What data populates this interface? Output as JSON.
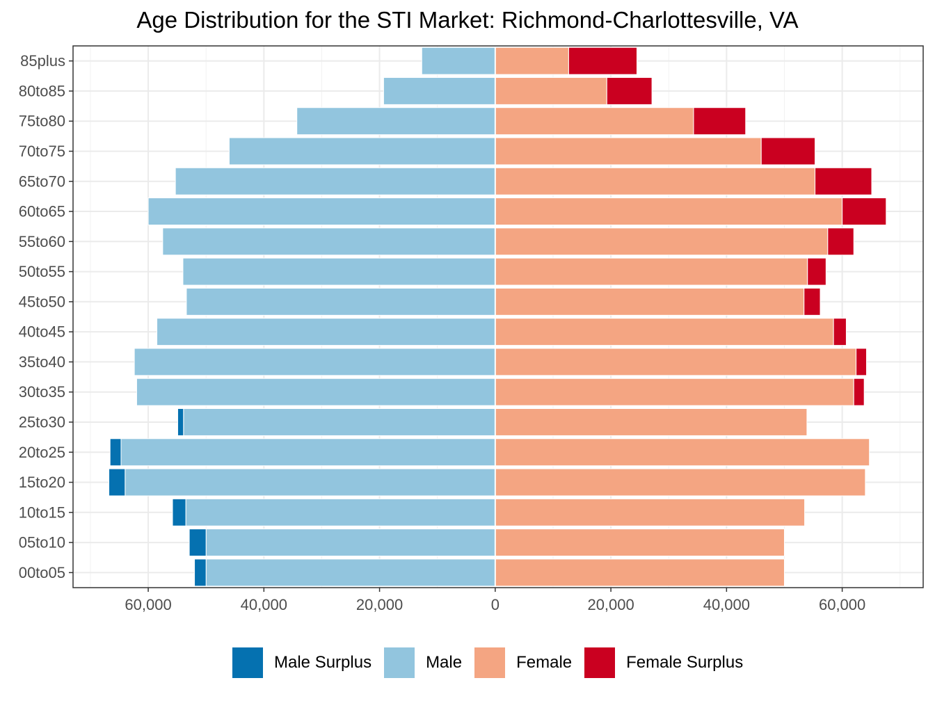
{
  "chart_data": {
    "type": "bar",
    "orientation": "horizontal",
    "title": "Age Distribution for the STI Market: Richmond-Charlottesville, VA",
    "xlabel": "",
    "ylabel": "",
    "categories": [
      "00to05",
      "05to10",
      "10to15",
      "15to20",
      "20to25",
      "25to30",
      "30to35",
      "35to40",
      "40to45",
      "45to50",
      "50to55",
      "55to60",
      "60to65",
      "65to70",
      "70to75",
      "75to80",
      "80to85",
      "85plus"
    ],
    "x_tick_values": [
      -60000,
      -40000,
      -20000,
      0,
      20000,
      40000,
      60000
    ],
    "x_tick_labels": [
      "60,000",
      "40,000",
      "20,000",
      "0",
      "20,000",
      "40,000",
      "60,000"
    ],
    "xlim": [
      -73000,
      74000
    ],
    "grid": true,
    "legend_position": "bottom",
    "series": [
      {
        "name": "Male Surplus",
        "color": "#0571b0",
        "side": "left",
        "values": [
          2000,
          2900,
          2300,
          2800,
          1900,
          1000,
          0,
          0,
          0,
          0,
          0,
          0,
          0,
          0,
          0,
          0,
          0,
          0
        ]
      },
      {
        "name": "Male",
        "color": "#92c5de",
        "side": "left",
        "values": [
          50000,
          50000,
          53500,
          64000,
          64700,
          53900,
          62000,
          62400,
          58500,
          53400,
          54000,
          57500,
          60000,
          55300,
          46000,
          34300,
          19300,
          12700
        ]
      },
      {
        "name": "Female",
        "color": "#f4a582",
        "side": "right",
        "values": [
          50000,
          50000,
          53500,
          64000,
          64700,
          53900,
          62000,
          62400,
          58500,
          53400,
          54000,
          57500,
          60000,
          55300,
          46000,
          34300,
          19300,
          12700
        ]
      },
      {
        "name": "Female Surplus",
        "color": "#ca0020",
        "side": "right",
        "values": [
          0,
          0,
          0,
          0,
          0,
          0,
          1800,
          1800,
          2200,
          2800,
          3200,
          4500,
          7600,
          9800,
          9300,
          9000,
          7800,
          11800
        ]
      }
    ]
  }
}
